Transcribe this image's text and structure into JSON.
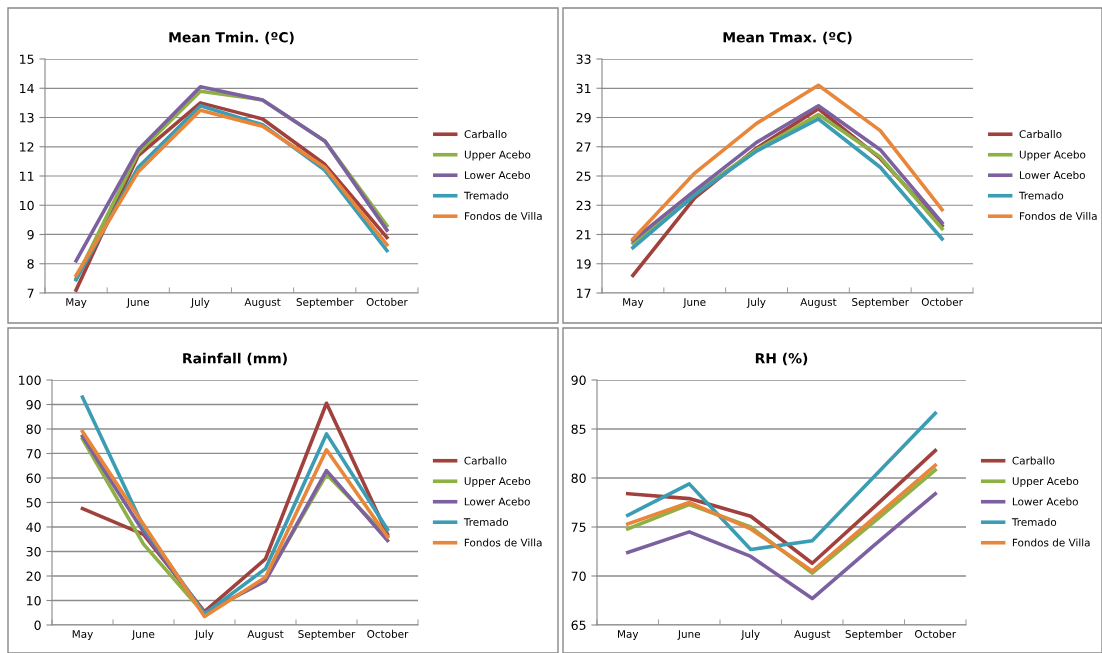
{
  "chart_data": [
    {
      "type": "line",
      "title": "Mean Tmin. (ºC)",
      "categories": [
        "May",
        "June",
        "July",
        "August",
        "September",
        "October"
      ],
      "ylim": [
        7,
        15
      ],
      "yticks": [
        7,
        8,
        9,
        10,
        11,
        12,
        13,
        14,
        15
      ],
      "grid": "y",
      "legend": "right",
      "marker": "none",
      "line_style": "solid",
      "series": [
        {
          "name": "Carballo",
          "color": "#a0413d",
          "values": [
            7.1,
            11.7,
            13.5,
            12.95,
            11.4,
            8.9
          ]
        },
        {
          "name": "Upper Acebo",
          "color": "#8db145",
          "values": [
            7.5,
            11.8,
            13.9,
            13.6,
            12.2,
            9.3
          ]
        },
        {
          "name": "Lower Acebo",
          "color": "#7d60a0",
          "values": [
            8.1,
            11.9,
            14.05,
            13.6,
            12.2,
            9.15
          ]
        },
        {
          "name": "Tremado",
          "color": "#3b9db3",
          "values": [
            7.45,
            11.3,
            13.4,
            12.75,
            11.2,
            8.45
          ]
        },
        {
          "name": "Fondos de Villa",
          "color": "#e8863a",
          "values": [
            7.6,
            11.15,
            13.25,
            12.7,
            11.3,
            8.65
          ]
        }
      ]
    },
    {
      "type": "line",
      "title": "Mean Tmax. (ºC)",
      "categories": [
        "May",
        "June",
        "July",
        "August",
        "September",
        "October"
      ],
      "ylim": [
        17,
        33
      ],
      "yticks": [
        17,
        19,
        21,
        23,
        25,
        27,
        29,
        31,
        33
      ],
      "grid": "y",
      "legend": "right",
      "marker": "none",
      "line_style": "solid",
      "series": [
        {
          "name": "Carballo",
          "color": "#a0413d",
          "values": [
            18.2,
            23.5,
            26.9,
            29.6,
            26.2,
            21.6
          ]
        },
        {
          "name": "Upper Acebo",
          "color": "#8db145",
          "values": [
            20.4,
            23.8,
            26.8,
            29.2,
            26.3,
            21.4
          ]
        },
        {
          "name": "Lower Acebo",
          "color": "#7d60a0",
          "values": [
            20.6,
            24.0,
            27.3,
            29.8,
            26.8,
            21.8
          ]
        },
        {
          "name": "Tremado",
          "color": "#3b9db3",
          "values": [
            20.1,
            23.7,
            26.7,
            28.9,
            25.6,
            20.7
          ]
        },
        {
          "name": "Fondos de Villa",
          "color": "#e8863a",
          "values": [
            20.7,
            25.2,
            28.6,
            31.2,
            28.1,
            22.7
          ]
        }
      ]
    },
    {
      "type": "line",
      "title": "Rainfall (mm)",
      "categories": [
        "May",
        "June",
        "July",
        "August",
        "September",
        "October"
      ],
      "ylim": [
        0,
        100
      ],
      "yticks": [
        0,
        10,
        20,
        30,
        40,
        50,
        60,
        70,
        80,
        90,
        100
      ],
      "grid": "y",
      "legend": "right",
      "marker": "none",
      "line_style": "solid",
      "series": [
        {
          "name": "Carballo",
          "color": "#a0413d",
          "values": [
            47.5,
            37,
            5.5,
            27,
            90.5,
            37
          ]
        },
        {
          "name": "Upper Acebo",
          "color": "#8db145",
          "values": [
            76,
            33,
            4.5,
            18.5,
            61.5,
            36
          ]
        },
        {
          "name": "Lower Acebo",
          "color": "#7d60a0",
          "values": [
            77,
            38,
            5,
            18,
            63,
            34.5
          ]
        },
        {
          "name": "Tremado",
          "color": "#3b9db3",
          "values": [
            93,
            40,
            4.5,
            23,
            78,
            39
          ]
        },
        {
          "name": "Fondos de Villa",
          "color": "#e8863a",
          "values": [
            79,
            41,
            3.5,
            19.5,
            71.5,
            36
          ]
        }
      ]
    },
    {
      "type": "line",
      "title": "RH (%)",
      "categories": [
        "May",
        "June",
        "July",
        "August",
        "September",
        "October"
      ],
      "ylim": [
        65,
        90
      ],
      "yticks": [
        65,
        70,
        75,
        80,
        85,
        90
      ],
      "grid": "y",
      "legend": "right",
      "marker": "none",
      "line_style": "solid",
      "series": [
        {
          "name": "Carballo",
          "color": "#a0413d",
          "values": [
            78.4,
            77.9,
            76.1,
            71.3,
            77.0,
            82.8
          ]
        },
        {
          "name": "Upper Acebo",
          "color": "#8db145",
          "values": [
            74.8,
            77.3,
            75.0,
            70.3,
            75.5,
            80.8
          ]
        },
        {
          "name": "Lower Acebo",
          "color": "#7d60a0",
          "values": [
            72.4,
            74.5,
            72.0,
            67.7,
            73.1,
            78.4
          ]
        },
        {
          "name": "Tremado",
          "color": "#3b9db3",
          "values": [
            76.2,
            79.4,
            72.7,
            73.6,
            80.1,
            86.6
          ]
        },
        {
          "name": "Fondos de Villa",
          "color": "#e8863a",
          "values": [
            75.3,
            77.5,
            74.8,
            70.5,
            75.9,
            81.3
          ]
        }
      ]
    }
  ]
}
